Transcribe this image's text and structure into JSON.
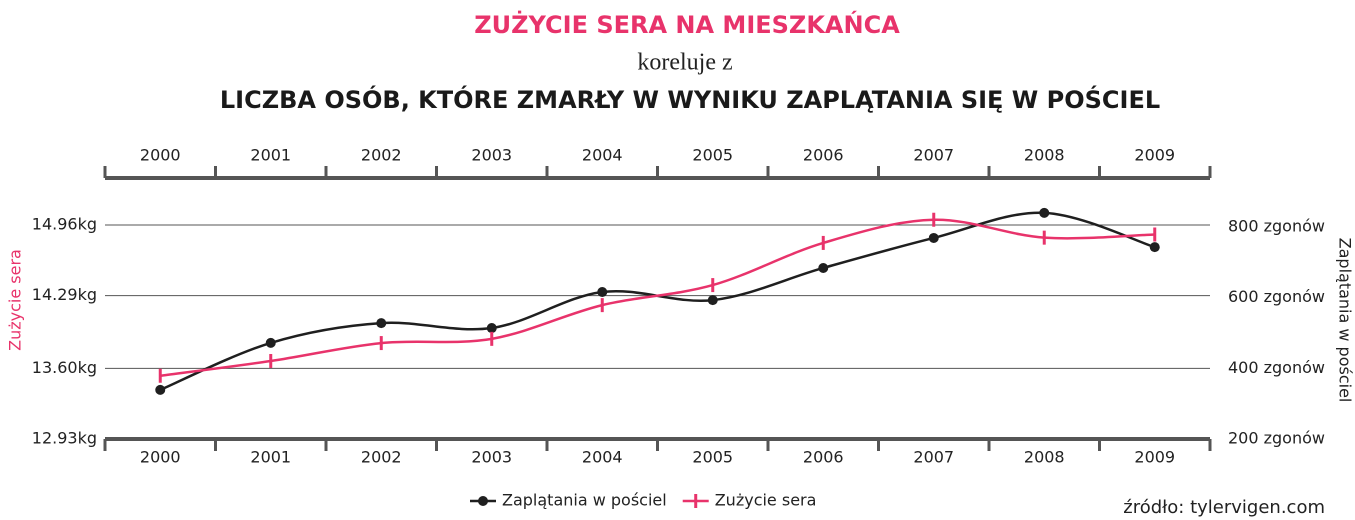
{
  "chart_data": {
    "type": "line",
    "title": "ZUŻYCIE SERA NA MIESZKAŃCA",
    "subtitle": "koreluje z",
    "title2": "LICZBA OSÓB, KTÓRE ZMARŁY W WYNIKU ZAPLĄTANIA SIĘ W POŚCIEL",
    "ylabel": "Zużycie sera",
    "y2label": "Zaplątania w pościel",
    "source": "źródło: tylervigen.com",
    "categories": [
      "2000",
      "2001",
      "2002",
      "2003",
      "2004",
      "2005",
      "2006",
      "2007",
      "2008",
      "2009"
    ],
    "series": [
      {
        "name": "Zaplątania w pościel",
        "color": "#1f1f1f",
        "axis": "y2",
        "values": [
          339,
          472,
          528,
          514,
          616,
          593,
          684,
          769,
          840,
          743
        ]
      },
      {
        "name": "Zużycie sera",
        "color": "#e8336b",
        "values": [
          13.53,
          13.67,
          13.84,
          13.88,
          14.2,
          14.39,
          14.79,
          15.01,
          14.84,
          14.87
        ]
      }
    ],
    "ylim": [
      12.93,
      15.33
    ],
    "yticks": [
      {
        "value": 12.93,
        "label": "12.93kg"
      },
      {
        "value": 13.6,
        "label": "13.60kg"
      },
      {
        "value": 14.29,
        "label": "14.29kg"
      },
      {
        "value": 14.96,
        "label": "14.96kg"
      }
    ],
    "y2lim": [
      200,
      916
    ],
    "y2ticks": [
      {
        "value": 200,
        "label": "200 zgonów"
      },
      {
        "value": 400,
        "label": "400 zgonów"
      },
      {
        "value": 600,
        "label": "600 zgonów"
      },
      {
        "value": 800,
        "label": "800 zgonów"
      }
    ],
    "grid": true,
    "legend": "bottom"
  }
}
